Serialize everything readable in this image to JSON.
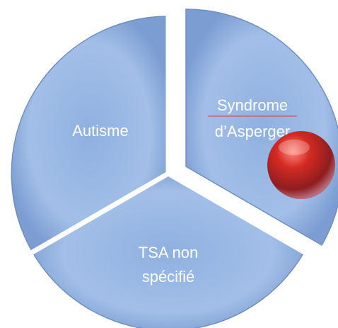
{
  "nodes": [
    {
      "lines": [
        "Autisme"
      ]
    },
    {
      "lines": [
        "Syndrome",
        "d’Asperger"
      ]
    },
    {
      "lines": [
        "TSA non",
        "spécifié"
      ]
    }
  ]
}
